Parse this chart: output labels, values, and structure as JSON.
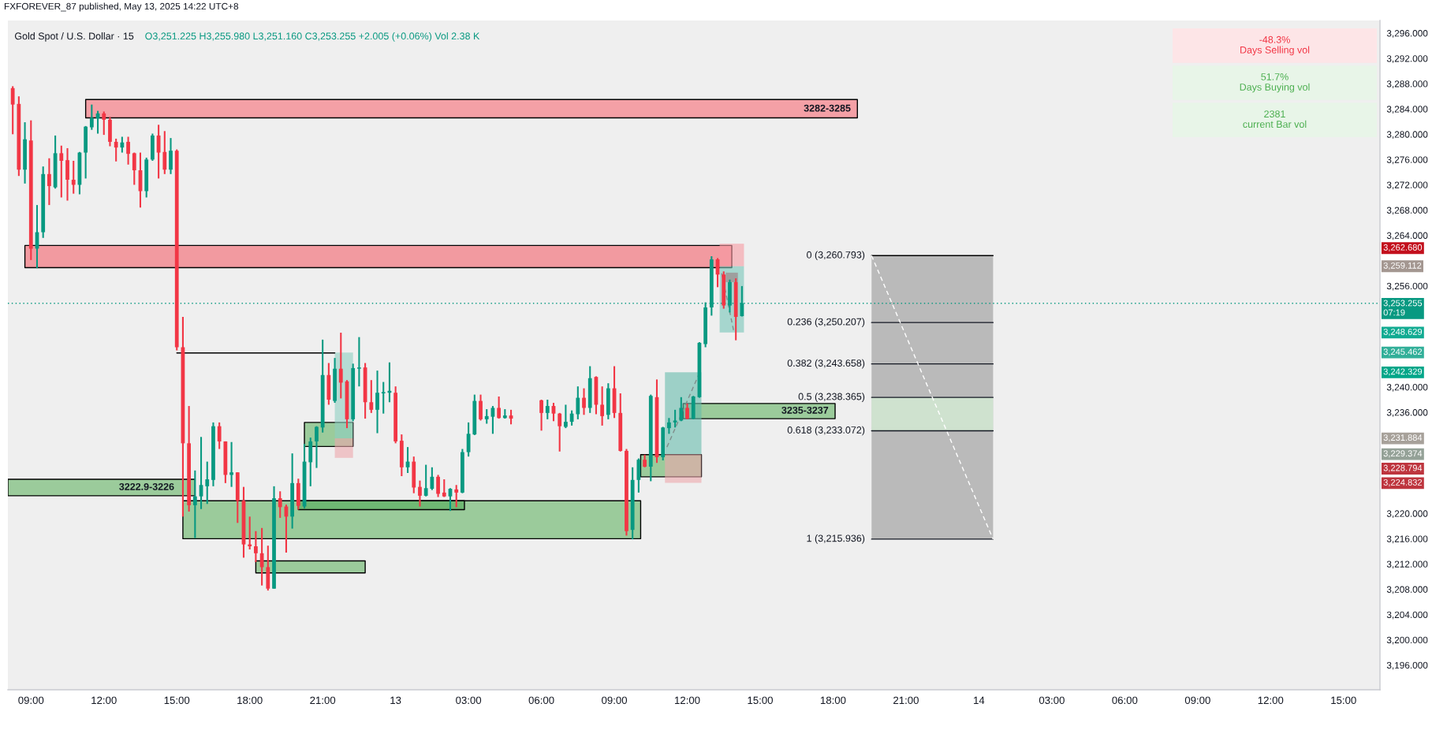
{
  "chart_data": [
    {
      "type": "candlestick",
      "title": "Gold Spot / U.S. Dollar · 15",
      "subtitle": "O3,251.225 H3,255.980 L3,251.160 C3,253.255 +2.005 (+0.06%) Vol 2.38 K",
      "x": [
        "2025-05-12T08:15",
        "2025-05-12T08:30",
        "2025-05-12T08:45",
        "2025-05-12T09:00",
        "2025-05-12T09:15",
        "2025-05-12T09:30",
        "2025-05-12T09:45",
        "2025-05-12T10:00",
        "2025-05-12T10:15",
        "2025-05-12T10:30",
        "2025-05-12T10:45",
        "2025-05-12T11:00",
        "2025-05-12T11:15",
        "2025-05-12T11:30",
        "2025-05-12T11:45",
        "2025-05-12T12:00",
        "2025-05-12T12:15",
        "2025-05-12T12:30",
        "2025-05-12T12:45",
        "2025-05-12T13:00",
        "2025-05-12T13:15",
        "2025-05-12T13:30",
        "2025-05-12T13:45",
        "2025-05-12T14:00",
        "2025-05-12T14:15",
        "2025-05-12T14:30",
        "2025-05-12T14:45",
        "2025-05-12T15:00",
        "2025-05-12T15:15",
        "2025-05-12T15:30",
        "2025-05-12T15:45",
        "2025-05-12T16:00",
        "2025-05-12T16:15",
        "2025-05-12T16:30",
        "2025-05-12T16:45",
        "2025-05-12T17:00",
        "2025-05-12T17:15",
        "2025-05-12T17:30",
        "2025-05-12T17:45",
        "2025-05-12T18:00",
        "2025-05-12T18:15",
        "2025-05-12T18:30",
        "2025-05-12T18:45",
        "2025-05-12T19:00",
        "2025-05-12T19:15",
        "2025-05-12T19:30",
        "2025-05-12T19:45",
        "2025-05-12T20:00",
        "2025-05-12T20:15",
        "2025-05-12T20:30",
        "2025-05-12T20:45",
        "2025-05-12T21:00",
        "2025-05-12T21:15",
        "2025-05-12T21:30",
        "2025-05-12T21:45",
        "2025-05-12T22:00",
        "2025-05-12T22:15",
        "2025-05-12T22:30",
        "2025-05-12T22:45",
        "2025-05-12T23:00",
        "2025-05-12T23:15",
        "2025-05-12T23:30",
        "2025-05-12T23:45",
        "2025-05-13T00:00",
        "2025-05-13T00:15",
        "2025-05-13T00:30",
        "2025-05-13T00:45",
        "2025-05-13T01:00",
        "2025-05-13T01:15",
        "2025-05-13T01:30",
        "2025-05-13T01:45",
        "2025-05-13T02:00",
        "2025-05-13T02:15",
        "2025-05-13T02:30",
        "2025-05-13T02:45",
        "2025-05-13T03:00",
        "2025-05-13T03:15",
        "2025-05-13T03:30",
        "2025-05-13T03:45",
        "2025-05-13T04:00",
        "2025-05-13T04:15",
        "2025-05-13T04:30",
        "2025-05-13T04:45",
        "2025-05-13T06:00",
        "2025-05-13T06:15",
        "2025-05-13T06:30",
        "2025-05-13T06:45",
        "2025-05-13T07:00",
        "2025-05-13T07:15",
        "2025-05-13T07:30",
        "2025-05-13T07:45",
        "2025-05-13T08:00",
        "2025-05-13T08:15",
        "2025-05-13T08:30",
        "2025-05-13T08:45",
        "2025-05-13T09:00",
        "2025-05-13T09:15",
        "2025-05-13T09:30",
        "2025-05-13T09:45",
        "2025-05-13T10:00",
        "2025-05-13T10:15",
        "2025-05-13T10:30",
        "2025-05-13T10:45",
        "2025-05-13T11:00",
        "2025-05-13T11:15",
        "2025-05-13T11:30",
        "2025-05-13T11:45",
        "2025-05-13T12:00",
        "2025-05-13T12:15",
        "2025-05-13T12:30",
        "2025-05-13T12:45",
        "2025-05-13T13:00",
        "2025-05-13T13:15",
        "2025-05-13T13:30",
        "2025-05-13T13:45",
        "2025-05-13T14:00",
        "2025-05-13T14:15"
      ],
      "ohlc": [
        [
          3287.3,
          3287.6,
          3280.0,
          3284.7
        ],
        [
          3284.8,
          3286.0,
          3273.4,
          3274.4
        ],
        [
          3274.4,
          3281.9,
          3272.2,
          3279.2
        ],
        [
          3279.0,
          3282.2,
          3260.1,
          3261.9
        ],
        [
          3261.9,
          3268.8,
          3258.8,
          3264.5
        ],
        [
          3264.5,
          3274.9,
          3263.6,
          3273.7
        ],
        [
          3273.7,
          3276.2,
          3268.8,
          3271.8
        ],
        [
          3271.6,
          3279.8,
          3271.4,
          3277.0
        ],
        [
          3277.0,
          3278.2,
          3270.0,
          3275.8
        ],
        [
          3275.9,
          3277.8,
          3269.5,
          3272.8
        ],
        [
          3272.8,
          3275.8,
          3270.6,
          3272.0
        ],
        [
          3272.0,
          3277.2,
          3270.5,
          3277.1
        ],
        [
          3277.1,
          3281.3,
          3273.0,
          3281.2
        ],
        [
          3281.1,
          3284.7,
          3280.7,
          3282.6
        ],
        [
          3282.5,
          3283.7,
          3280.1,
          3283.3
        ],
        [
          3283.3,
          3283.6,
          3279.9,
          3282.3
        ],
        [
          3282.3,
          3282.7,
          3278.1,
          3278.8
        ],
        [
          3278.8,
          3279.3,
          3275.7,
          3277.9
        ],
        [
          3277.9,
          3279.6,
          3277.1,
          3278.7
        ],
        [
          3278.8,
          3279.6,
          3275.2,
          3276.9
        ],
        [
          3277.0,
          3277.1,
          3272.0,
          3274.3
        ],
        [
          3274.3,
          3277.1,
          3268.4,
          3271.0
        ],
        [
          3271.0,
          3276.3,
          3270.0,
          3276.0
        ],
        [
          3276.0,
          3280.1,
          3275.8,
          3279.8
        ],
        [
          3279.8,
          3281.5,
          3273.0,
          3277.1
        ],
        [
          3277.2,
          3280.5,
          3273.7,
          3274.4
        ],
        [
          3274.4,
          3279.4,
          3273.7,
          3277.4
        ],
        [
          3277.4,
          3277.6,
          3245.8,
          3246.3
        ],
        [
          3246.3,
          3251.1,
          3219.5,
          3231.1
        ],
        [
          3231.1,
          3237.0,
          3220.3,
          3221.3
        ],
        [
          3221.3,
          3226.8,
          3216.1,
          3222.7
        ],
        [
          3222.7,
          3232.1,
          3220.7,
          3224.5
        ],
        [
          3224.3,
          3228.2,
          3221.5,
          3225.4
        ],
        [
          3225.3,
          3234.4,
          3224.3,
          3233.8
        ],
        [
          3233.8,
          3234.4,
          3230.2,
          3231.4
        ],
        [
          3231.4,
          3231.4,
          3224.8,
          3226.1
        ],
        [
          3226.1,
          3231.3,
          3224.2,
          3226.5
        ],
        [
          3226.5,
          3226.5,
          3218.5,
          3222.0
        ],
        [
          3222.0,
          3224.2,
          3213.0,
          3215.1
        ],
        [
          3215.1,
          3219.5,
          3214.3,
          3214.8
        ],
        [
          3214.8,
          3217.2,
          3212.3,
          3213.7
        ],
        [
          3213.7,
          3217.7,
          3208.6,
          3211.5
        ],
        [
          3211.5,
          3214.9,
          3207.8,
          3208.1
        ],
        [
          3208.1,
          3224.3,
          3208.1,
          3222.4
        ],
        [
          3222.4,
          3223.5,
          3219.3,
          3221.0
        ],
        [
          3221.1,
          3221.4,
          3213.8,
          3219.5
        ],
        [
          3219.5,
          3229.5,
          3217.6,
          3224.8
        ],
        [
          3224.8,
          3225.5,
          3220.6,
          3221.2
        ],
        [
          3221.1,
          3231.0,
          3220.8,
          3228.2
        ],
        [
          3228.1,
          3232.0,
          3224.3,
          3231.4
        ],
        [
          3231.4,
          3233.8,
          3227.2,
          3233.7
        ],
        [
          3233.6,
          3247.5,
          3232.8,
          3241.9
        ],
        [
          3241.9,
          3243.8,
          3237.2,
          3238.0
        ],
        [
          3237.8,
          3244.6,
          3237.5,
          3242.9
        ],
        [
          3242.9,
          3248.6,
          3238.2,
          3240.7
        ],
        [
          3240.9,
          3241.1,
          3233.5,
          3234.9
        ],
        [
          3234.9,
          3243.7,
          3234.6,
          3243.0
        ],
        [
          3242.9,
          3247.9,
          3240.1,
          3243.1
        ],
        [
          3243.1,
          3243.8,
          3235.0,
          3237.6
        ],
        [
          3237.6,
          3241.1,
          3235.9,
          3236.4
        ],
        [
          3236.4,
          3242.6,
          3232.7,
          3239.1
        ],
        [
          3239.0,
          3240.8,
          3235.8,
          3239.2
        ],
        [
          3239.1,
          3243.9,
          3237.6,
          3239.4
        ],
        [
          3239.1,
          3240.1,
          3231.1,
          3231.4
        ],
        [
          3231.5,
          3232.5,
          3225.9,
          3227.3
        ],
        [
          3227.3,
          3230.5,
          3226.4,
          3228.2
        ],
        [
          3228.2,
          3229.0,
          3223.2,
          3224.1
        ],
        [
          3224.2,
          3225.2,
          3221.1,
          3222.8
        ],
        [
          3222.8,
          3227.7,
          3222.7,
          3224.0
        ],
        [
          3223.9,
          3227.3,
          3223.7,
          3225.8
        ],
        [
          3225.8,
          3226.1,
          3222.6,
          3223.1
        ],
        [
          3223.3,
          3225.4,
          3222.6,
          3222.7
        ],
        [
          3222.7,
          3224.0,
          3220.4,
          3223.9
        ],
        [
          3223.8,
          3224.5,
          3221.0,
          3223.3
        ],
        [
          3223.3,
          3230.2,
          3223.2,
          3229.7
        ],
        [
          3229.7,
          3234.4,
          3229.0,
          3232.6
        ],
        [
          3232.5,
          3238.8,
          3232.4,
          3237.8
        ],
        [
          3237.8,
          3238.8,
          3234.7,
          3234.9
        ],
        [
          3234.9,
          3236.5,
          3234.2,
          3235.4
        ],
        [
          3235.3,
          3237.0,
          3232.6,
          3236.7
        ],
        [
          3236.7,
          3238.5,
          3235.0,
          3235.1
        ],
        [
          3235.1,
          3236.5,
          3235.0,
          3235.5
        ],
        [
          3235.5,
          3236.4,
          3234.1,
          3235.0
        ],
        [
          3237.9,
          3238.0,
          3233.1,
          3235.9
        ],
        [
          3235.9,
          3238.0,
          3234.9,
          3237.0
        ],
        [
          3237.0,
          3237.5,
          3234.6,
          3235.8
        ],
        [
          3235.8,
          3235.9,
          3229.8,
          3233.8
        ],
        [
          3233.7,
          3237.2,
          3233.5,
          3234.5
        ],
        [
          3234.5,
          3236.3,
          3233.9,
          3235.8
        ],
        [
          3235.7,
          3240.1,
          3234.9,
          3238.3
        ],
        [
          3238.3,
          3239.8,
          3235.6,
          3236.7
        ],
        [
          3236.7,
          3243.3,
          3235.9,
          3241.4
        ],
        [
          3241.6,
          3241.7,
          3235.7,
          3237.2
        ],
        [
          3237.2,
          3240.1,
          3233.9,
          3235.4
        ],
        [
          3235.6,
          3240.6,
          3234.9,
          3239.8
        ],
        [
          3239.8,
          3243.3,
          3235.1,
          3235.9
        ],
        [
          3235.9,
          3239.0,
          3229.8,
          3229.9
        ],
        [
          3229.9,
          3230.2,
          3216.5,
          3217.2
        ],
        [
          3217.4,
          3227.3,
          3215.9,
          3225.3
        ],
        [
          3225.3,
          3228.7,
          3223.3,
          3228.5
        ],
        [
          3228.5,
          3229.3,
          3227.3,
          3227.4
        ],
        [
          3227.4,
          3238.8,
          3225.1,
          3238.6
        ],
        [
          3238.4,
          3241.2,
          3228.0,
          3228.9
        ],
        [
          3228.9,
          3233.7,
          3228.4,
          3233.6
        ],
        [
          3233.5,
          3235.1,
          3232.6,
          3234.4
        ],
        [
          3234.4,
          3236.4,
          3233.6,
          3234.7
        ],
        [
          3234.7,
          3238.4,
          3234.6,
          3236.7
        ],
        [
          3236.7,
          3237.4,
          3234.9,
          3235.0
        ],
        [
          3235.0,
          3238.6,
          3234.9,
          3238.5
        ],
        [
          3238.4,
          3247.1,
          3238.3,
          3247.0
        ],
        [
          3246.8,
          3253.4,
          3246.3,
          3252.6
        ],
        [
          3252.6,
          3260.7,
          3251.3,
          3260.2
        ],
        [
          3260.2,
          3260.4,
          3255.8,
          3257.8
        ],
        [
          3257.8,
          3258.3,
          3252.4,
          3252.9
        ],
        [
          3252.9,
          3257.0,
          3251.8,
          3256.6
        ],
        [
          3256.6,
          3257.2,
          3247.4,
          3251.1
        ],
        [
          3251.225,
          3255.98,
          3251.16,
          3253.255
        ]
      ],
      "colors": [
        "#f23645",
        "#f23645",
        "#089981",
        "#f23645",
        "#089981",
        "#089981",
        "#f23645",
        "#089981",
        "#f23645",
        "#f23645",
        "#f23645",
        "#089981",
        "#089981",
        "#089981",
        "#089981",
        "#f23645",
        "#f23645",
        "#f23645",
        "#089981",
        "#f23645",
        "#f23645",
        "#f23645",
        "#089981",
        "#089981",
        "#f23645",
        "#f23645",
        "#089981",
        "#f23645",
        "#f23645",
        "#f23645",
        "#089981",
        "#089981",
        "#089981",
        "#089981",
        "#f23645",
        "#f23645",
        "#089981",
        "#f23645",
        "#f23645",
        "#f23645",
        "#f23645",
        "#f23645",
        "#f23645",
        "#089981",
        "#f23645",
        "#f23645",
        "#089981",
        "#f23645",
        "#089981",
        "#089981",
        "#089981",
        "#089981",
        "#f23645",
        "#089981",
        "#f23645",
        "#f23645",
        "#089981",
        "#089981",
        "#f23645",
        "#f23645",
        "#089981",
        "#089981",
        "#089981",
        "#f23645",
        "#f23645",
        "#089981",
        "#f23645",
        "#f23645",
        "#089981",
        "#089981",
        "#f23645",
        "#f23645",
        "#089981",
        "#f23645",
        "#089981",
        "#089981",
        "#089981",
        "#f23645",
        "#089981",
        "#089981",
        "#f23645",
        "#089981",
        "#f23645",
        "#f23645",
        "#089981",
        "#f23645",
        "#f23645",
        "#089981",
        "#089981",
        "#089981",
        "#f23645",
        "#089981",
        "#f23645",
        "#f23645",
        "#089981",
        "#f23645",
        "#f23645",
        "#f23645",
        "#089981",
        "#089981",
        "#f23645",
        "#089981",
        "#f23645",
        "#089981",
        "#089981",
        "#089981",
        "#089981",
        "#f23645",
        "#089981",
        "#089981",
        "#089981",
        "#089981",
        "#f23645",
        "#f23645",
        "#089981",
        "#f23645",
        "#089981"
      ],
      "xlim": [
        "2025-05-12T08:03",
        "2025-05-14T16:30"
      ],
      "xticks": [
        {
          "value": "2025-05-12T09:00",
          "label": "09:00"
        },
        {
          "value": "2025-05-12T12:00",
          "label": "12:00"
        },
        {
          "value": "2025-05-12T15:00",
          "label": "15:00"
        },
        {
          "value": "2025-05-12T18:00",
          "label": "18:00"
        },
        {
          "value": "2025-05-12T21:00",
          "label": "21:00"
        },
        {
          "value": "2025-05-13T00:00",
          "label": "13"
        },
        {
          "value": "2025-05-13T03:00",
          "label": "03:00"
        },
        {
          "value": "2025-05-13T06:00",
          "label": "06:00"
        },
        {
          "value": "2025-05-13T09:00",
          "label": "09:00"
        },
        {
          "value": "2025-05-13T12:00",
          "label": "12:00"
        },
        {
          "value": "2025-05-13T15:00",
          "label": "15:00"
        },
        {
          "value": "2025-05-13T18:00",
          "label": "18:00"
        },
        {
          "value": "2025-05-13T21:00",
          "label": "21:00"
        },
        {
          "value": "2025-05-14T00:00",
          "label": "14"
        },
        {
          "value": "2025-05-14T03:00",
          "label": "03:00"
        },
        {
          "value": "2025-05-14T06:00",
          "label": "06:00"
        },
        {
          "value": "2025-05-14T09:00",
          "label": "09:00"
        },
        {
          "value": "2025-05-14T12:00",
          "label": "12:00"
        },
        {
          "value": "2025-05-14T15:00",
          "label": "15:00"
        }
      ],
      "ylim": [
        3192.1,
        3298.0
      ],
      "yticks": [
        {
          "value": 3196,
          "label": "3,196.000"
        },
        {
          "value": 3200,
          "label": "3,200.000"
        },
        {
          "value": 3204,
          "label": "3,204.000"
        },
        {
          "value": 3208,
          "label": "3,208.000"
        },
        {
          "value": 3212,
          "label": "3,212.000"
        },
        {
          "value": 3216,
          "label": "3,216.000"
        },
        {
          "value": 3220,
          "label": "3,220.000"
        },
        {
          "value": 3236,
          "label": "3,236.000"
        },
        {
          "value": 3240,
          "label": "3,240.000"
        },
        {
          "value": 3256,
          "label": "3,256.000"
        },
        {
          "value": 3264,
          "label": "3,264.000"
        },
        {
          "value": 3268,
          "label": "3,268.000"
        },
        {
          "value": 3272,
          "label": "3,272.000"
        },
        {
          "value": 3276,
          "label": "3,276.000"
        },
        {
          "value": 3280,
          "label": "3,280.000"
        },
        {
          "value": 3284,
          "label": "3,284.000"
        },
        {
          "value": 3288,
          "label": "3,288.000"
        },
        {
          "value": 3292,
          "label": "3,292.000"
        },
        {
          "value": 3296,
          "label": "3,296.000"
        }
      ],
      "series": [
        {
          "type": "line",
          "x": [
            "2025-05-12T11:15",
            "2025-05-13T19:00"
          ],
          "values": [
            null,
            null
          ],
          "lower": [
            3282.6,
            3282.6
          ],
          "upper": [
            3285.5,
            3285.5
          ],
          "color": "#f4a0a6",
          "line_style": "solid"
        },
        {
          "type": "line",
          "x": [
            "2025-05-12T08:45",
            "2025-05-13T13:50"
          ],
          "values": [
            null,
            null
          ],
          "lower": [
            3258.9,
            3258.9
          ],
          "upper": [
            3262.4,
            3262.4
          ],
          "color": "#f29aa0",
          "line_style": "solid"
        },
        {
          "type": "line",
          "x": [
            "2025-05-12T08:03",
            "2025-05-12T15:45"
          ],
          "values": [
            null,
            null
          ],
          "lower": [
            3222.8,
            3222.8
          ],
          "upper": [
            3225.4,
            3225.4
          ],
          "color": "#9bcb9b",
          "line_style": "solid"
        },
        {
          "type": "line",
          "x": [
            "2025-05-12T15:15",
            "2025-05-13T10:05"
          ],
          "values": [
            null,
            null
          ],
          "lower": [
            3216.0,
            3216.0
          ],
          "upper": [
            3222.0,
            3222.0
          ],
          "color": "#9bcb9b",
          "line_style": "solid"
        },
        {
          "type": "line",
          "x": [
            "2025-05-12T20:00",
            "2025-05-13T02:50"
          ],
          "values": [
            null,
            null
          ],
          "lower": [
            3220.6,
            3220.6
          ],
          "upper": [
            3222.0,
            3222.0
          ],
          "color": "#6fb873",
          "line_style": "solid"
        },
        {
          "type": "line",
          "x": [
            "2025-05-12T18:15",
            "2025-05-12T22:45"
          ],
          "values": [
            null,
            null
          ],
          "lower": [
            3210.6,
            3210.6
          ],
          "upper": [
            3212.5,
            3212.5
          ],
          "color": "#9bcb9b",
          "line_style": "solid"
        },
        {
          "type": "line",
          "x": [
            "2025-05-12T20:15",
            "2025-05-12T22:15"
          ],
          "values": [
            null,
            null
          ],
          "lower": [
            3230.6,
            3230.6
          ],
          "upper": [
            3234.4,
            3234.4
          ],
          "color": "#9bcb9b",
          "line_style": "solid"
        },
        {
          "type": "line",
          "x": [
            "2025-05-13T10:05",
            "2025-05-13T12:35"
          ],
          "values": [
            null,
            null
          ],
          "lower": [
            3225.8,
            3225.8
          ],
          "upper": [
            3229.3,
            3229.3
          ],
          "color": "#9bcb9b",
          "line_style": "solid"
        },
        {
          "type": "line",
          "x": [
            "2025-05-13T11:50",
            "2025-05-13T18:05"
          ],
          "values": [
            null,
            null
          ],
          "lower": [
            3235.0,
            3235.0
          ],
          "upper": [
            3237.4,
            3237.4
          ],
          "color": "#9bcb9b",
          "line_style": "solid"
        },
        {
          "type": "line",
          "x": [
            "2025-05-12T15:00",
            "2025-05-12T21:30"
          ],
          "values": [
            3245.4,
            3245.4
          ],
          "color": "#000000",
          "line_style": "solid"
        },
        {
          "type": "line",
          "x": [
            "2025-05-12T21:30",
            "2025-05-12T22:15"
          ],
          "values": [
            null,
            null
          ],
          "lower": [
            3231.884,
            3231.884
          ],
          "upper": [
            3245.462,
            3245.462
          ],
          "color": "#b4dbd4"
        },
        {
          "type": "line",
          "x": [
            "2025-05-12T21:30",
            "2025-05-12T22:15"
          ],
          "values": [
            null,
            null
          ],
          "lower": [
            3228.794,
            3228.794
          ],
          "upper": [
            3231.884,
            3231.884
          ],
          "color": "#eec3c6"
        },
        {
          "type": "line",
          "x": [
            "2025-05-13T11:05",
            "2025-05-13T12:35"
          ],
          "values": [
            null,
            null
          ],
          "lower": [
            3229.374,
            3229.374
          ],
          "upper": [
            3242.329,
            3242.329
          ],
          "color": "#9ccfc6"
        },
        {
          "type": "line",
          "x": [
            "2025-05-13T11:05",
            "2025-05-13T12:35"
          ],
          "values": [
            null,
            null
          ],
          "lower": [
            3224.832,
            3224.832
          ],
          "upper": [
            3229.374,
            3229.374
          ],
          "color": "#eec3c6"
        },
        {
          "type": "line",
          "x": [
            "2025-05-13T11:10",
            "2025-05-13T12:30"
          ],
          "values": [
            3230.5,
            3242.2
          ],
          "color": "#7f8c8a",
          "line_style": "dashed"
        },
        {
          "type": "line",
          "x": [
            "2025-05-13T13:20",
            "2025-05-13T14:20"
          ],
          "values": [
            null,
            null
          ],
          "lower": [
            3259.112,
            3259.112
          ],
          "upper": [
            3262.68,
            3262.68
          ],
          "color": "#f4bcc0"
        },
        {
          "type": "line",
          "x": [
            "2025-05-13T13:20",
            "2025-05-13T14:20"
          ],
          "values": [
            null,
            null
          ],
          "lower": [
            3248.629,
            3248.629
          ],
          "upper": [
            3259.112,
            3259.112
          ],
          "color": "#a6d6ce"
        },
        {
          "type": "line",
          "x": [
            "2025-05-13T13:35",
            "2025-05-13T14:05"
          ],
          "values": [
            null,
            null
          ],
          "lower": [
            3256.6,
            3256.6
          ],
          "upper": [
            3258.1,
            3258.1
          ],
          "color": "#9e9e9e"
        },
        {
          "type": "line",
          "x": [
            "2025-05-13T13:25",
            "2025-05-13T13:55"
          ],
          "values": [
            3258.0,
            3248.8
          ],
          "color": "#7f8c8a",
          "line_style": "dashed"
        },
        {
          "type": "line",
          "x": [
            "2025-05-13T19:35",
            "2025-05-14T00:35"
          ],
          "values": [
            3260.793,
            3260.793
          ],
          "lower": [
            3215.936,
            3215.936
          ],
          "upper": [
            3260.793,
            3260.793
          ],
          "color": "#000000",
          "line_style": "solid"
        },
        {
          "type": "line",
          "x": [
            "2025-05-13T19:35",
            "2025-05-14T00:35"
          ],
          "values": [
            null,
            null
          ],
          "lower": [
            3233.072,
            3233.072
          ],
          "upper": [
            3238.365,
            3238.365
          ],
          "color": "#cfe3cf"
        },
        {
          "type": "line",
          "x": [
            "2025-05-13T19:35",
            "2025-05-14T00:35"
          ],
          "values": [
            3250.207,
            3250.207
          ],
          "color": "#131722",
          "line_style": "solid"
        },
        {
          "type": "line",
          "x": [
            "2025-05-13T19:35",
            "2025-05-14T00:35"
          ],
          "values": [
            3243.658,
            3243.658
          ],
          "color": "#131722",
          "line_style": "solid"
        },
        {
          "type": "line",
          "x": [
            "2025-05-13T19:35",
            "2025-05-14T00:35"
          ],
          "values": [
            3238.365,
            3238.365
          ],
          "color": "#131722",
          "line_style": "solid"
        },
        {
          "type": "line",
          "x": [
            "2025-05-13T19:35",
            "2025-05-14T00:35"
          ],
          "values": [
            3233.072,
            3233.072
          ],
          "color": "#131722",
          "line_style": "solid"
        },
        {
          "type": "line",
          "x": [
            "2025-05-13T19:35",
            "2025-05-14T00:35"
          ],
          "values": [
            3215.936,
            3215.936
          ],
          "color": "#131722",
          "line_style": "solid"
        },
        {
          "type": "line",
          "x": [
            "2025-05-13T19:35",
            "2025-05-14T00:35"
          ],
          "values": [
            3260.793,
            3215.936
          ],
          "color": "#ffffff",
          "line_style": "dashed"
        }
      ],
      "ref_lines": [
        {
          "axis": "y",
          "value": 3253.255,
          "label": "3,253.255\n07:19",
          "color": "#089981",
          "line_style": "dotted"
        }
      ],
      "annotations": [
        "FXFOREVER_87 published, May 13, 2025 14:22 UTC+8",
        {
          "text": "3282-3285",
          "x": "2025-05-13T19:00",
          "y": 3284.0
        },
        {
          "text": "3222.9-3226",
          "x": "2025-05-12T15:10",
          "y": 3224.1
        },
        {
          "text": "3235-3237",
          "x": "2025-05-13T18:05",
          "y": 3236.2
        },
        {
          "text": "0 (3,260.793)",
          "x": "2025-05-13T19:35",
          "y": 3260.793
        },
        {
          "text": "0.236 (3,250.207)",
          "x": "2025-05-13T19:35",
          "y": 3250.207
        },
        {
          "text": "0.382 (3,243.658)",
          "x": "2025-05-13T19:35",
          "y": 3243.658
        },
        {
          "text": "0.5 (3,238.365)",
          "x": "2025-05-13T19:35",
          "y": 3238.365
        },
        {
          "text": "0.618 (3,233.072)",
          "x": "2025-05-13T19:35",
          "y": 3233.072
        },
        {
          "text": "1 (3,215.936)",
          "x": "2025-05-13T19:35",
          "y": 3215.936
        },
        "3,262.680",
        "3,259.112",
        "3,248.629",
        "3,245.462",
        "3,242.329",
        "3,231.884",
        "3,229.374",
        "3,228.794",
        "3,224.832"
      ]
    },
    {
      "type": "other",
      "annotations": [
        "-48.3%\nDays Selling vol",
        "51.7%\nDays Buying vol",
        "2381\ncurrent Bar vol"
      ],
      "colors": [
        "#f23645",
        "#4caf50",
        "#4caf50"
      ]
    }
  ]
}
